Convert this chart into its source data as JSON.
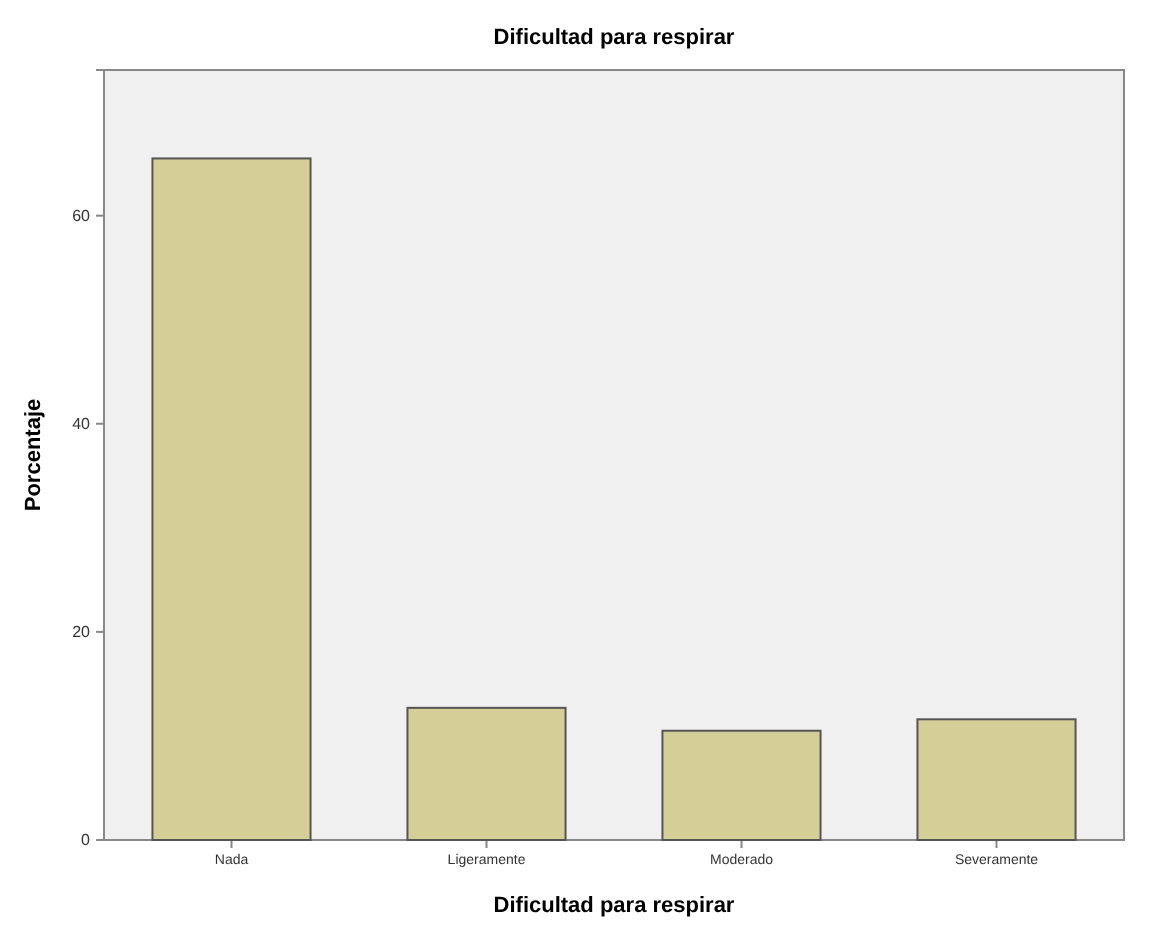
{
  "chart_data": {
    "type": "bar",
    "title": "Dificultad para respirar",
    "xlabel": "Dificultad para respirar",
    "ylabel": "Porcentaje",
    "categories": [
      "Nada",
      "Ligeramente",
      "Moderado",
      "Severamente"
    ],
    "values": [
      65.5,
      12.7,
      10.5,
      11.6
    ],
    "color": "#d3cf96",
    "ylim": [
      0,
      74
    ],
    "yticks": [
      0,
      20,
      40,
      60
    ],
    "grid": false
  }
}
